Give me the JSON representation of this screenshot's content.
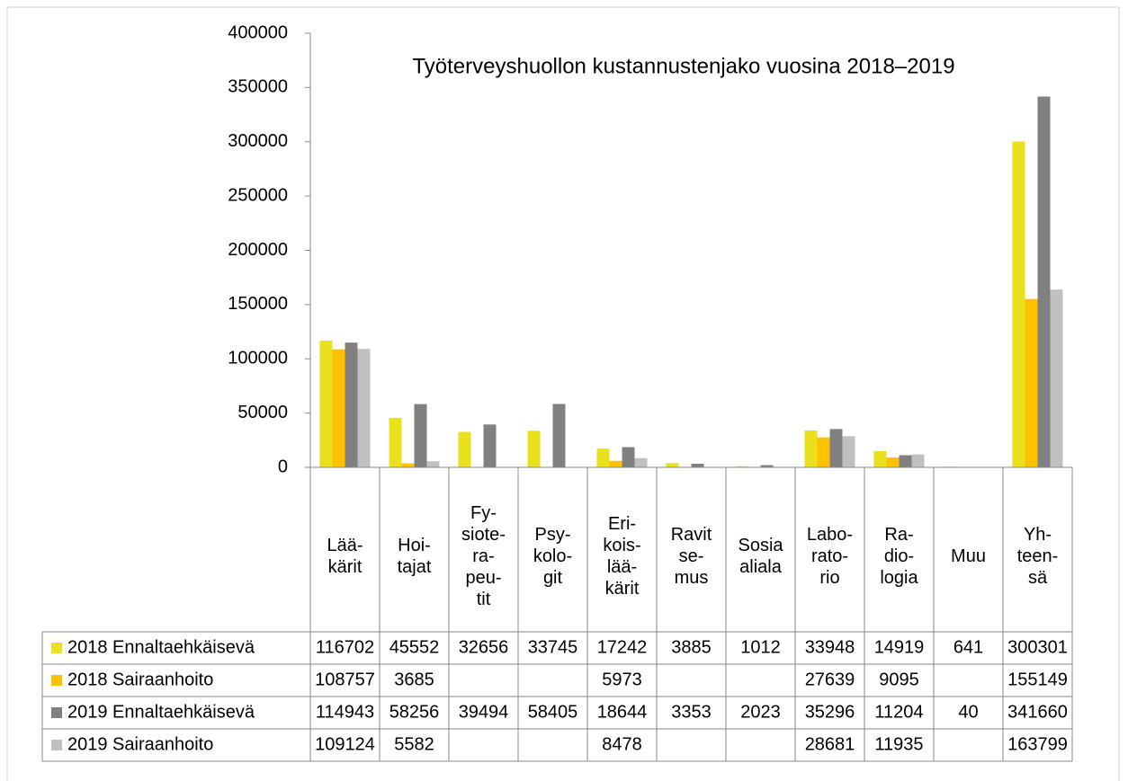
{
  "chart_data": {
    "type": "bar",
    "title": "Työterveyshuollon kustannustenjako vuosina 2018–2019",
    "categories": [
      [
        "Lää-",
        "kärit"
      ],
      [
        "Hoi-",
        "tajat"
      ],
      [
        "Fy-",
        "siote-",
        "ra-",
        "peu-",
        "tit"
      ],
      [
        "Psy-",
        "kolo-",
        "git"
      ],
      [
        "Eri-",
        "kois-",
        "lää-",
        "kärit"
      ],
      [
        "Ravit",
        "se-",
        "mus"
      ],
      [
        "Sosia",
        "aliala"
      ],
      [
        "Labo-",
        "rato-",
        "rio"
      ],
      [
        "Ra-",
        "dio-",
        "logia"
      ],
      [
        "Muu"
      ],
      [
        "Yh-",
        "teen-",
        "sä"
      ]
    ],
    "series": [
      {
        "name": "2018 Ennaltaehkäisevä",
        "color": "#ebe01c",
        "values": [
          116702,
          45552,
          32656,
          33745,
          17242,
          3885,
          1012,
          33948,
          14919,
          641,
          300301
        ]
      },
      {
        "name": "2018 Sairaanhoito",
        "color": "#ffc000",
        "values": [
          108757,
          3685,
          null,
          null,
          5973,
          null,
          null,
          27639,
          9095,
          null,
          155149
        ]
      },
      {
        "name": "2019 Ennaltaehkäisevä",
        "color": "#808080",
        "values": [
          114943,
          58256,
          39494,
          58405,
          18644,
          3353,
          2023,
          35296,
          11204,
          40,
          341660
        ]
      },
      {
        "name": "2019 Sairaanhoito",
        "color": "#c0c0c0",
        "values": [
          109124,
          5582,
          null,
          null,
          8478,
          null,
          null,
          28681,
          11935,
          null,
          163799
        ]
      }
    ],
    "ylim": [
      0,
      400000
    ],
    "yticks": [
      0,
      50000,
      100000,
      150000,
      200000,
      250000,
      300000,
      350000,
      400000
    ],
    "data_table": true
  }
}
